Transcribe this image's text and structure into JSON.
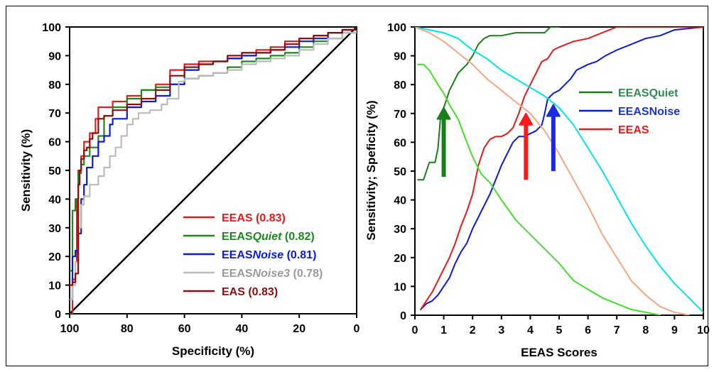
{
  "chart_data": [
    {
      "type": "line",
      "xlabel": "Specificity (%)",
      "ylabel": "Sensitivity (%)",
      "xlim": [
        100,
        0
      ],
      "ylim": [
        0,
        100
      ],
      "x_reversed": true,
      "x_ticks": [
        100,
        80,
        60,
        40,
        20,
        0
      ],
      "y_ticks": [
        0,
        10,
        20,
        30,
        40,
        50,
        60,
        70,
        80,
        90,
        100
      ],
      "grid": false,
      "legend_position": "bottom-right",
      "legend_colors": [
        "#e41a1c",
        "#1a8a1a",
        "#0a1ad8",
        "#bbbbbb",
        "#8b0f0f"
      ],
      "legend": [
        {
          "prefix": "EEAS",
          "italic": "",
          "suffix": " (0.83)"
        },
        {
          "prefix": "EEAS",
          "italic": "Quiet",
          "suffix": " (0.82)"
        },
        {
          "prefix": "EEAS",
          "italic": "Noise",
          "suffix": " (0.81)"
        },
        {
          "prefix": "EEAS",
          "italic": "Noise3",
          "suffix": " (0.78)"
        },
        {
          "prefix": "EAS",
          "italic": "",
          "suffix": " (0.83)"
        }
      ],
      "series": [
        {
          "name": "EEAS",
          "color": "#e41a1c",
          "x": [
            100,
            99,
            98,
            97.5,
            97,
            96,
            95,
            93,
            91,
            90,
            88,
            85,
            80,
            75,
            70,
            65,
            60,
            55,
            50,
            45,
            40,
            35,
            30,
            25,
            20,
            15,
            10,
            5,
            0
          ],
          "y": [
            0,
            12,
            18,
            40,
            50,
            55,
            60,
            63,
            68,
            72,
            72,
            74,
            76,
            78,
            80,
            85,
            87,
            88,
            88,
            89,
            91,
            92,
            93,
            95,
            96,
            97,
            98,
            99,
            100
          ]
        },
        {
          "name": "EEASQuiet",
          "color": "#1a8a1a",
          "x": [
            100,
            99,
            98,
            97,
            96,
            95,
            93,
            90,
            88,
            85,
            80,
            75,
            70,
            65,
            60,
            55,
            50,
            45,
            40,
            35,
            30,
            25,
            20,
            15,
            10,
            5,
            0
          ],
          "y": [
            15,
            36,
            40,
            49,
            52,
            55,
            58,
            62,
            69,
            72,
            75,
            78,
            79,
            80,
            82,
            83,
            84,
            86,
            88,
            89,
            90,
            91,
            93,
            95,
            96,
            98,
            100
          ]
        },
        {
          "name": "EEASNoise",
          "color": "#0a1ad8",
          "x": [
            100,
            99,
            98,
            97,
            96,
            95,
            94,
            92,
            90,
            88,
            86,
            85,
            80,
            75,
            70,
            65,
            60,
            55,
            50,
            45,
            40,
            35,
            30,
            25,
            20,
            15,
            10,
            5,
            0
          ],
          "y": [
            5,
            20,
            22,
            28,
            40,
            45,
            51,
            55,
            60,
            62,
            66,
            68,
            72,
            74,
            76,
            80,
            85,
            87,
            88,
            89,
            90,
            91,
            92,
            93,
            95,
            96,
            98,
            99,
            100
          ]
        },
        {
          "name": "EEASNoise3",
          "color": "#bbbbbb",
          "x": [
            100,
            99,
            98,
            97,
            96,
            95,
            93,
            90,
            88,
            86,
            84,
            82,
            80,
            78,
            76,
            72,
            68,
            66,
            62,
            60,
            55,
            50,
            45,
            40,
            35,
            30,
            25,
            20,
            15,
            10,
            5,
            0
          ],
          "y": [
            5,
            10,
            18,
            30,
            38,
            41,
            45,
            48,
            51,
            55,
            58,
            62,
            66,
            68,
            70,
            71,
            73,
            75,
            81,
            82,
            83,
            84,
            85,
            87,
            88,
            89,
            90,
            92,
            94,
            96,
            98,
            100
          ]
        },
        {
          "name": "EAS",
          "color": "#8b0f0f",
          "x": [
            100,
            99,
            98,
            97,
            96.5,
            96,
            95,
            94,
            93,
            92,
            90,
            88,
            85,
            80,
            75,
            70,
            65,
            60,
            55,
            50,
            45,
            40,
            35,
            30,
            25,
            20,
            15,
            10,
            5,
            0
          ],
          "y": [
            10,
            11,
            14,
            45,
            50,
            54,
            57,
            58,
            61,
            63,
            68,
            69,
            71,
            73,
            75,
            78,
            83,
            86,
            87,
            88,
            90,
            91,
            91,
            92,
            94,
            96,
            97,
            98,
            99,
            100
          ]
        }
      ]
    },
    {
      "type": "line",
      "xlabel": "EEAS Scores",
      "ylabel": "Sensitivity; Speficity (%)",
      "xlim": [
        0,
        10
      ],
      "ylim": [
        0,
        100
      ],
      "x_ticks": [
        0,
        1,
        2,
        3,
        4,
        5,
        6,
        7,
        8,
        9,
        10
      ],
      "y_ticks": [
        0,
        10,
        20,
        30,
        40,
        50,
        60,
        70,
        80,
        90,
        100
      ],
      "grid": false,
      "legend_position": "right",
      "legend": [
        "EEASQuiet",
        "EEASNoise",
        "EEAS"
      ],
      "legend_colors": [
        "#1a7f1a",
        "#0a1ad8",
        "#e41a1c"
      ],
      "legend_text_colors": [
        "#2e8b57",
        "#1a34c8",
        "#e41a1c"
      ],
      "series": [
        {
          "name": "EEASQuiet",
          "color": "#1a7f1a",
          "x": [
            0.1,
            0.3,
            0.5,
            0.7,
            0.8,
            0.9,
            1.0,
            1.1,
            1.2,
            1.3,
            1.5,
            1.7,
            1.8,
            2.0,
            2.2,
            2.4,
            2.6,
            3.0,
            3.5,
            4.0,
            4.5,
            4.7,
            5.0
          ],
          "y": [
            47,
            47,
            53,
            53,
            58,
            70,
            72,
            75,
            78,
            80,
            84,
            86,
            87,
            90,
            94,
            96,
            97,
            97,
            98,
            98,
            98,
            100,
            100
          ]
        },
        {
          "name": "EEASNoise",
          "color": "#0a1ad8",
          "x": [
            0.2,
            0.4,
            0.6,
            0.8,
            1.0,
            1.2,
            1.4,
            1.6,
            1.8,
            2.0,
            2.2,
            2.4,
            2.6,
            2.8,
            3.0,
            3.2,
            3.4,
            3.6,
            3.8,
            4.0,
            4.2,
            4.4,
            4.5,
            4.6,
            4.8,
            5.0,
            5.2,
            5.4,
            5.6,
            5.8,
            6.0,
            6.3,
            6.6,
            7.0,
            7.5,
            8.0,
            8.5,
            9.0,
            10.0
          ],
          "y": [
            2,
            4,
            5,
            7,
            10,
            13,
            18,
            22,
            25,
            30,
            34,
            38,
            42,
            47,
            52,
            56,
            60,
            62,
            62,
            63,
            64,
            66,
            70,
            75,
            77,
            78,
            80,
            82,
            85,
            86,
            87,
            88,
            90,
            92,
            94,
            96,
            97,
            99,
            100
          ]
        },
        {
          "name": "EEAS",
          "color": "#e41a1c",
          "x": [
            0.2,
            0.4,
            0.6,
            0.8,
            1.0,
            1.2,
            1.4,
            1.6,
            1.8,
            2.0,
            2.2,
            2.4,
            2.6,
            2.8,
            3.0,
            3.2,
            3.4,
            3.6,
            3.8,
            4.0,
            4.2,
            4.4,
            4.6,
            4.8,
            5.0,
            5.5,
            6.0,
            6.5,
            7.0,
            8.0,
            9.0,
            10.0
          ],
          "y": [
            2,
            5,
            8,
            12,
            16,
            20,
            25,
            31,
            36,
            42,
            52,
            58,
            61,
            62,
            62,
            63,
            65,
            70,
            76,
            80,
            84,
            88,
            89,
            92,
            93,
            95,
            96,
            98,
            100,
            100,
            100,
            100
          ]
        },
        {
          "name": "",
          "color": "#00e5e5",
          "x": [
            0,
            0.5,
            1,
            1.5,
            2,
            2.5,
            3,
            3.5,
            4,
            4.5,
            5,
            5.5,
            6,
            6.5,
            7,
            7.5,
            8,
            8.5,
            9,
            9.5,
            10
          ],
          "y": [
            100,
            99,
            98,
            96,
            92,
            89,
            85,
            82,
            79,
            76,
            72,
            66,
            58,
            50,
            41,
            32,
            24,
            17,
            11,
            6,
            1
          ]
        },
        {
          "name": "",
          "color": "#f4a582",
          "x": [
            0,
            0.5,
            1,
            1.5,
            2,
            2.5,
            3,
            3.5,
            4,
            4.5,
            5,
            5.5,
            6,
            6.5,
            7,
            7.5,
            8,
            8.5,
            9,
            9.5
          ],
          "y": [
            100,
            98,
            95,
            91,
            87,
            82,
            78,
            74,
            70,
            64,
            56,
            47,
            38,
            28,
            20,
            12,
            7,
            3,
            1,
            0
          ]
        },
        {
          "name": "",
          "color": "#44dd2a",
          "x": [
            0.1,
            0.3,
            0.5,
            0.8,
            1.0,
            1.2,
            1.5,
            1.8,
            2.0,
            2.3,
            2.6,
            3.0,
            3.5,
            4.0,
            4.5,
            5.0,
            5.5,
            6.0,
            6.5,
            7.0,
            7.5,
            8.0,
            8.5
          ],
          "y": [
            87,
            87,
            85,
            80,
            77,
            73,
            68,
            60,
            55,
            49,
            46,
            40,
            33,
            28,
            23,
            18,
            12,
            9,
            6,
            4,
            2,
            1,
            0
          ]
        }
      ],
      "arrows": [
        {
          "x": 1.0,
          "y_from": 48,
          "y_to": 72,
          "color": "#1a7f1a"
        },
        {
          "x": 3.85,
          "y_from": 47,
          "y_to": 70,
          "color": "#ff1a1a"
        },
        {
          "x": 4.8,
          "y_from": 50,
          "y_to": 73,
          "color": "#1a2ae0"
        }
      ]
    }
  ]
}
